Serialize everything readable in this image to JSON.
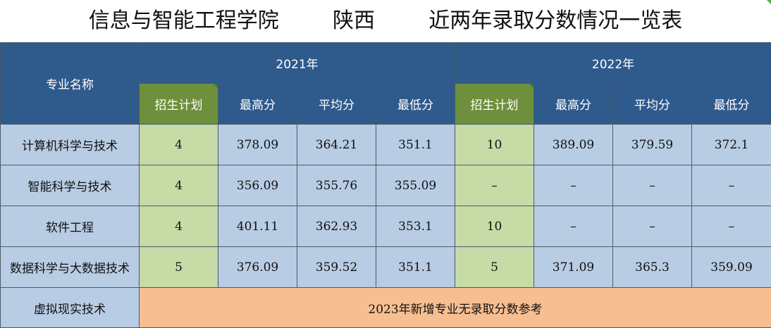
{
  "header": {
    "title": "信息与智能工程学院        陕西        近两年录取分数情况一览表"
  },
  "table": {
    "major_header": "专业名称",
    "years": [
      "2021年",
      "2022年"
    ],
    "subheaders": [
      "招生计划",
      "最高分",
      "平均分",
      "最低分",
      "招生计划",
      "最高分",
      "平均分",
      "最低分"
    ],
    "rows": [
      {
        "name": "计算机科学与技术",
        "cells": [
          "4",
          "378.09",
          "364.21",
          "351.1",
          "10",
          "389.09",
          "379.59",
          "372.1"
        ]
      },
      {
        "name": "智能科学与技术",
        "cells": [
          "4",
          "356.09",
          "355.76",
          "355.09",
          "–",
          "–",
          "–",
          "–"
        ]
      },
      {
        "name": "软件工程",
        "cells": [
          "4",
          "401.11",
          "362.93",
          "353.1",
          "10",
          "–",
          "–",
          "–"
        ]
      },
      {
        "name": "数据科学与大数据技术",
        "cells": [
          "5",
          "376.09",
          "359.52",
          "351.1",
          "5",
          "371.09",
          "365.3",
          "359.09"
        ]
      }
    ],
    "last_row": {
      "name": "虚拟现实技术",
      "note": "2023年新增专业无录取分数参考"
    }
  },
  "colors": {
    "header_blue": "#2f5a8c",
    "plan_header_green": "#6e8f3c",
    "plan_cell_green": "#c6dba6",
    "score_cell_blue": "#b8cce4",
    "note_orange": "#f7bf91"
  }
}
